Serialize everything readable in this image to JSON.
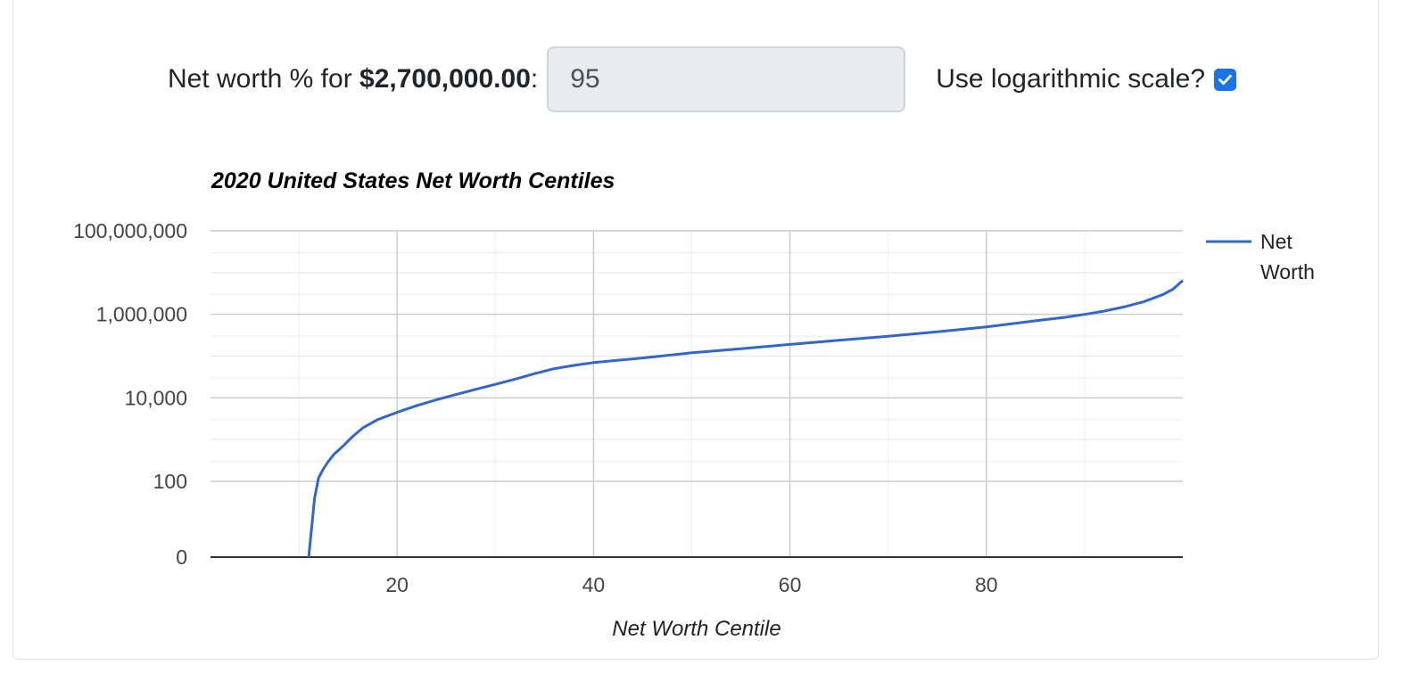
{
  "controls": {
    "net_worth_prefix": "Net worth % for ",
    "net_worth_amount": "$2,700,000.00",
    "net_worth_suffix": ":",
    "percent_value": "95",
    "log_label": "Use logarithmic scale?",
    "log_checked": true
  },
  "chart_data": {
    "type": "line",
    "title": "2020 United States Net Worth Centiles",
    "xlabel": "Net Worth Centile",
    "ylabel": "",
    "log_scale_y": true,
    "xlim": [
      1,
      100
    ],
    "ylim": [
      0,
      100000000
    ],
    "x_ticks": [
      "20",
      "40",
      "60",
      "80"
    ],
    "y_ticks": [
      "100,000,000",
      "1,000,000",
      "10,000",
      "100",
      "0"
    ],
    "grid": true,
    "legend_position": "right",
    "line_color": "#3366cc",
    "series": [
      {
        "name": "Net Worth",
        "x": [
          11,
          11.6,
          12,
          12.5,
          13,
          13.6,
          14.5,
          15.5,
          16.5,
          18,
          20,
          22,
          24,
          26,
          28,
          30,
          32,
          34,
          36,
          38,
          40,
          45,
          50,
          55,
          60,
          65,
          70,
          75,
          80,
          85,
          88,
          90,
          92,
          94,
          96,
          98,
          99,
          100
        ],
        "y": [
          0,
          60,
          120,
          200,
          300,
          450,
          700,
          1200,
          1900,
          3000,
          4500,
          6500,
          9000,
          12000,
          16000,
          21000,
          28000,
          38000,
          50000,
          60000,
          70000,
          90000,
          120000,
          150000,
          190000,
          240000,
          300000,
          380000,
          500000,
          700000,
          850000,
          1000000,
          1200000,
          1500000,
          2000000,
          3000000,
          4000000,
          6500000
        ]
      }
    ]
  }
}
